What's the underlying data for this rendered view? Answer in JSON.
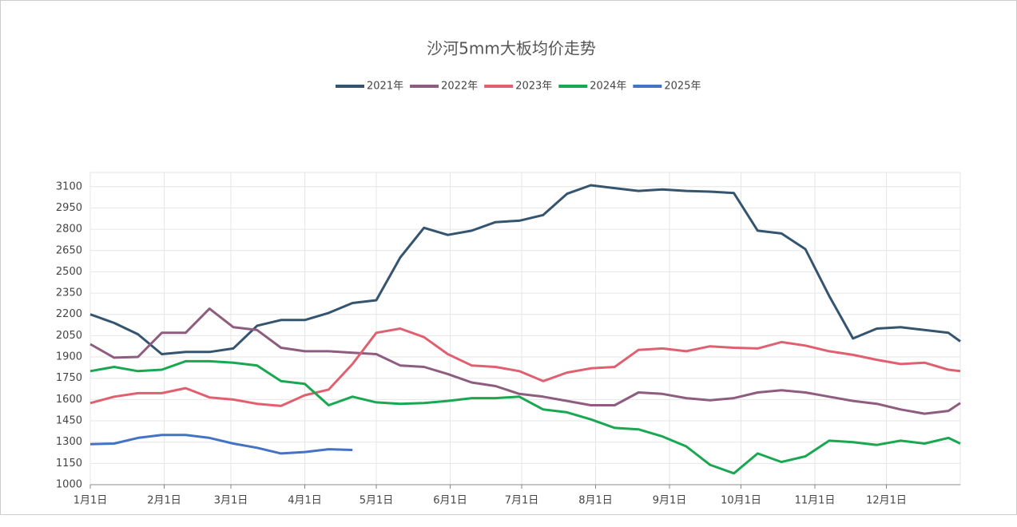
{
  "chart_data": {
    "type": "line",
    "title": "沙河5mm大板均价走势",
    "x": [
      0,
      10,
      20,
      30,
      40,
      50,
      60,
      70,
      80,
      90,
      100,
      110,
      120,
      130,
      140,
      150,
      160,
      170,
      180,
      190,
      200,
      210,
      220,
      230,
      240,
      250,
      260,
      270,
      280,
      290,
      300,
      310,
      320,
      330,
      340,
      350,
      360,
      365
    ],
    "xlim": [
      0,
      365
    ],
    "xticks": [
      {
        "value": 0,
        "label": "1月1日"
      },
      {
        "value": 31,
        "label": "2月1日"
      },
      {
        "value": 59,
        "label": "3月1日"
      },
      {
        "value": 90,
        "label": "4月1日"
      },
      {
        "value": 120,
        "label": "5月1日"
      },
      {
        "value": 151,
        "label": "6月1日"
      },
      {
        "value": 181,
        "label": "7月1日"
      },
      {
        "value": 212,
        "label": "8月1日"
      },
      {
        "value": 243,
        "label": "9月1日"
      },
      {
        "value": 273,
        "label": "10月1日"
      },
      {
        "value": 304,
        "label": "11月1日"
      },
      {
        "value": 334,
        "label": "12月1日"
      }
    ],
    "ylim": [
      1000,
      3200
    ],
    "yticks": [
      1000,
      1150,
      1300,
      1450,
      1600,
      1750,
      1900,
      2050,
      2200,
      2350,
      2500,
      2650,
      2800,
      2950,
      3100
    ],
    "grid": true,
    "series": [
      {
        "name": "2021年",
        "color": "#34546f",
        "values": [
          2200,
          2140,
          2060,
          1920,
          1935,
          1935,
          1960,
          2120,
          2160,
          2160,
          2210,
          2280,
          2300,
          2600,
          2810,
          2760,
          2790,
          2850,
          2860,
          2900,
          3050,
          3110,
          3090,
          3070,
          3080,
          3070,
          3065,
          3055,
          2790,
          2770,
          2660,
          2330,
          2030,
          2100,
          2110,
          2090,
          2070,
          2010
        ]
      },
      {
        "name": "2022年",
        "color": "#8e5c7f",
        "values": [
          1990,
          1895,
          1900,
          2070,
          2070,
          2240,
          2110,
          2090,
          1965,
          1940,
          1940,
          1930,
          1920,
          1840,
          1830,
          1780,
          1720,
          1695,
          1640,
          1620,
          1590,
          1560,
          1560,
          1650,
          1640,
          1610,
          1595,
          1610,
          1650,
          1665,
          1650,
          1620,
          1590,
          1570,
          1530,
          1500,
          1520,
          1575
        ]
      },
      {
        "name": "2023年",
        "color": "#e06070",
        "values": [
          1575,
          1620,
          1645,
          1645,
          1680,
          1615,
          1600,
          1570,
          1555,
          1630,
          1670,
          1850,
          2070,
          2100,
          2040,
          1920,
          1840,
          1830,
          1800,
          1730,
          1790,
          1820,
          1830,
          1950,
          1960,
          1940,
          1975,
          1965,
          1960,
          2005,
          1980,
          1940,
          1915,
          1880,
          1850,
          1860,
          1810,
          1800
        ]
      },
      {
        "name": "2024年",
        "color": "#19a851",
        "values": [
          1800,
          1830,
          1800,
          1810,
          1870,
          1870,
          1860,
          1840,
          1730,
          1710,
          1560,
          1620,
          1580,
          1570,
          1575,
          1590,
          1610,
          1610,
          1620,
          1530,
          1510,
          1460,
          1400,
          1390,
          1340,
          1270,
          1140,
          1080,
          1220,
          1160,
          1200,
          1310,
          1300,
          1280,
          1310,
          1290,
          1330,
          1290
        ]
      },
      {
        "name": "2025年",
        "color": "#4472c4",
        "values": [
          1285,
          1290,
          1330,
          1350,
          1350,
          1330,
          1290,
          1260,
          1220,
          1230,
          1250,
          1245,
          null,
          null,
          null,
          null,
          null,
          null,
          null,
          null,
          null,
          null,
          null,
          null,
          null,
          null,
          null,
          null,
          null,
          null,
          null,
          null,
          null,
          null,
          null,
          null,
          null,
          null
        ]
      }
    ]
  }
}
